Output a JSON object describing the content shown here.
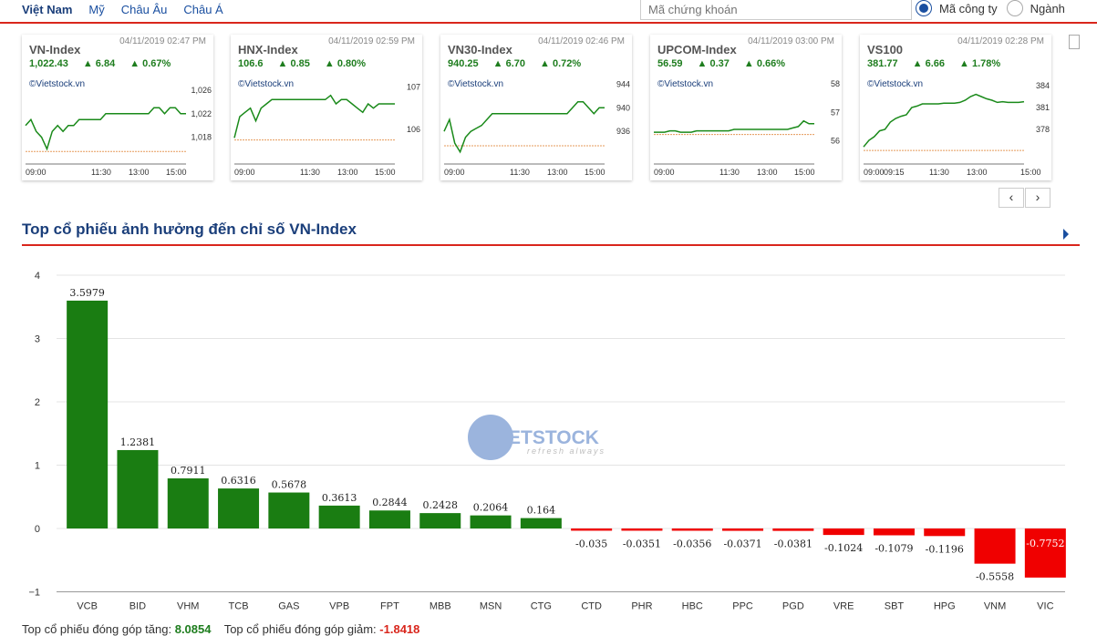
{
  "nav": {
    "tabs": [
      "Việt Nam",
      "Mỹ",
      "Châu Âu",
      "Châu Á"
    ],
    "search_placeholder": "Mã chứng khoán",
    "radio_options": [
      "Mã công ty",
      "Ngành"
    ]
  },
  "cards": [
    {
      "name": "VN-Index",
      "time": "04/11/2019 02:47 PM",
      "value": "1,022.43",
      "change": "6.84",
      "pct": "0.67%",
      "source": "©Vietstock.vn",
      "yticks": [
        "1,026",
        "1,022",
        "1,018"
      ],
      "xticks": [
        "09:00",
        "11:30",
        "13:00",
        "15:00"
      ],
      "ymin": 1015,
      "ymax": 1028,
      "ref": 1015.59,
      "series": [
        1020,
        1021,
        1019,
        1018,
        1016,
        1019,
        1020,
        1019,
        1020,
        1020,
        1021,
        1021,
        1021,
        1021,
        1021,
        1022,
        1022,
        1022,
        1022,
        1022,
        1022,
        1022,
        1022,
        1022,
        1023,
        1023,
        1022,
        1023,
        1023,
        1022,
        1022
      ]
    },
    {
      "name": "HNX-Index",
      "time": "04/11/2019 02:59 PM",
      "value": "106.6",
      "change": "0.85",
      "pct": "0.80%",
      "source": "©Vietstock.vn",
      "yticks": [
        "107",
        "106"
      ],
      "xticks": [
        "09:00",
        "11:30",
        "13:00",
        "15:00"
      ],
      "ymin": 105.4,
      "ymax": 107.2,
      "ref": 105.75,
      "series": [
        105.8,
        106.3,
        106.4,
        106.5,
        106.2,
        106.5,
        106.6,
        106.7,
        106.7,
        106.7,
        106.7,
        106.7,
        106.7,
        106.7,
        106.7,
        106.7,
        106.7,
        106.7,
        106.8,
        106.6,
        106.7,
        106.7,
        106.6,
        106.5,
        106.4,
        106.6,
        106.5,
        106.6,
        106.6,
        106.6,
        106.6
      ]
    },
    {
      "name": "VN30-Index",
      "time": "04/11/2019 02:46 PM",
      "value": "940.25",
      "change": "6.70",
      "pct": "0.72%",
      "source": "©Vietstock.vn",
      "yticks": [
        "944",
        "940",
        "936"
      ],
      "xticks": [
        "09:00",
        "11:30",
        "13:00",
        "15:00"
      ],
      "ymin": 932,
      "ymax": 945,
      "ref": 933.55,
      "series": [
        936,
        938,
        934,
        932.5,
        935,
        936,
        936.5,
        937,
        938,
        939,
        939,
        939,
        939,
        939,
        939,
        939,
        939,
        939,
        939,
        939,
        939,
        939,
        939,
        939,
        940,
        941,
        941,
        940,
        939,
        940,
        940
      ]
    },
    {
      "name": "UPCOM-Index",
      "time": "04/11/2019 03:00 PM",
      "value": "56.59",
      "change": "0.37",
      "pct": "0.66%",
      "source": "©Vietstock.vn",
      "yticks": [
        "58",
        "57",
        "56"
      ],
      "xticks": [
        "09:00",
        "11:30",
        "13:00",
        "15:00"
      ],
      "ymin": 55.5,
      "ymax": 58.2,
      "ref": 56.22,
      "series": [
        56.3,
        56.3,
        56.3,
        56.35,
        56.35,
        56.3,
        56.3,
        56.3,
        56.35,
        56.35,
        56.35,
        56.35,
        56.35,
        56.35,
        56.35,
        56.4,
        56.4,
        56.4,
        56.4,
        56.4,
        56.4,
        56.4,
        56.4,
        56.4,
        56.4,
        56.4,
        56.45,
        56.5,
        56.7,
        56.6,
        56.6
      ]
    },
    {
      "name": "VS100",
      "time": "04/11/2019 02:28 PM",
      "value": "381.77",
      "change": "6.66",
      "pct": "1.78%",
      "source": "©Vietstock.vn",
      "yticks": [
        "384",
        "381",
        "378"
      ],
      "xticks": [
        "09:00",
        "09:15",
        "11:30",
        "13:00",
        "15:00"
      ],
      "ymin": 374.5,
      "ymax": 385,
      "ref": 375.11,
      "series": [
        375.6,
        376.5,
        377,
        377.8,
        378,
        379,
        379.5,
        379.8,
        380,
        381,
        381.2,
        381.5,
        381.5,
        381.5,
        381.5,
        381.6,
        381.6,
        381.6,
        381.7,
        382,
        382.5,
        382.8,
        382.5,
        382.2,
        382,
        381.7,
        381.8,
        381.7,
        381.7,
        381.7,
        381.8
      ]
    }
  ],
  "pager": {
    "prev": "‹",
    "next": "›"
  },
  "section": {
    "title": "Top cổ phiếu ảnh hưởng đến chỉ số VN-Index"
  },
  "chart_data": {
    "type": "bar",
    "title": "",
    "xlabel": "",
    "ylabel": "",
    "ylim": [
      -1,
      4
    ],
    "yticks": [
      "4",
      "3",
      "2",
      "1",
      "0",
      "−1"
    ],
    "categories": [
      "VCB",
      "BID",
      "VHM",
      "TCB",
      "GAS",
      "VPB",
      "FPT",
      "MBB",
      "MSN",
      "CTG",
      "CTD",
      "PHR",
      "HBC",
      "PPC",
      "PGD",
      "VRE",
      "SBT",
      "HPG",
      "VNM",
      "VIC"
    ],
    "values": [
      3.5979,
      1.2381,
      0.7911,
      0.6316,
      0.5678,
      0.3613,
      0.2844,
      0.2428,
      0.2064,
      0.164,
      -0.035,
      -0.0351,
      -0.0356,
      -0.0371,
      -0.0381,
      -0.1024,
      -0.1079,
      -0.1196,
      -0.5558,
      -0.7752
    ],
    "labels": [
      "3.5979",
      "1.2381",
      "0.7911",
      "0.6316",
      "0.5678",
      "0.3613",
      "0.2844",
      "0.2428",
      "0.2064",
      "0.164",
      "-0.035",
      "-0.0351",
      "-0.0356",
      "-0.0371",
      "-0.0381",
      "-0.1024",
      "-0.1079",
      "-0.1196",
      "-0.5558",
      "-0.7752"
    ],
    "colors": {
      "positive": "#1a7d12",
      "negative": "#f00000"
    },
    "grid": true,
    "watermark": {
      "brand": "ETSTOCK",
      "tagline": "refresh always"
    }
  },
  "footer": {
    "up_label": "Top cổ phiếu đóng góp tăng:",
    "up_value": "8.0854",
    "down_label": "Top cổ phiếu đóng góp giảm:",
    "down_value": "-1.8418"
  }
}
